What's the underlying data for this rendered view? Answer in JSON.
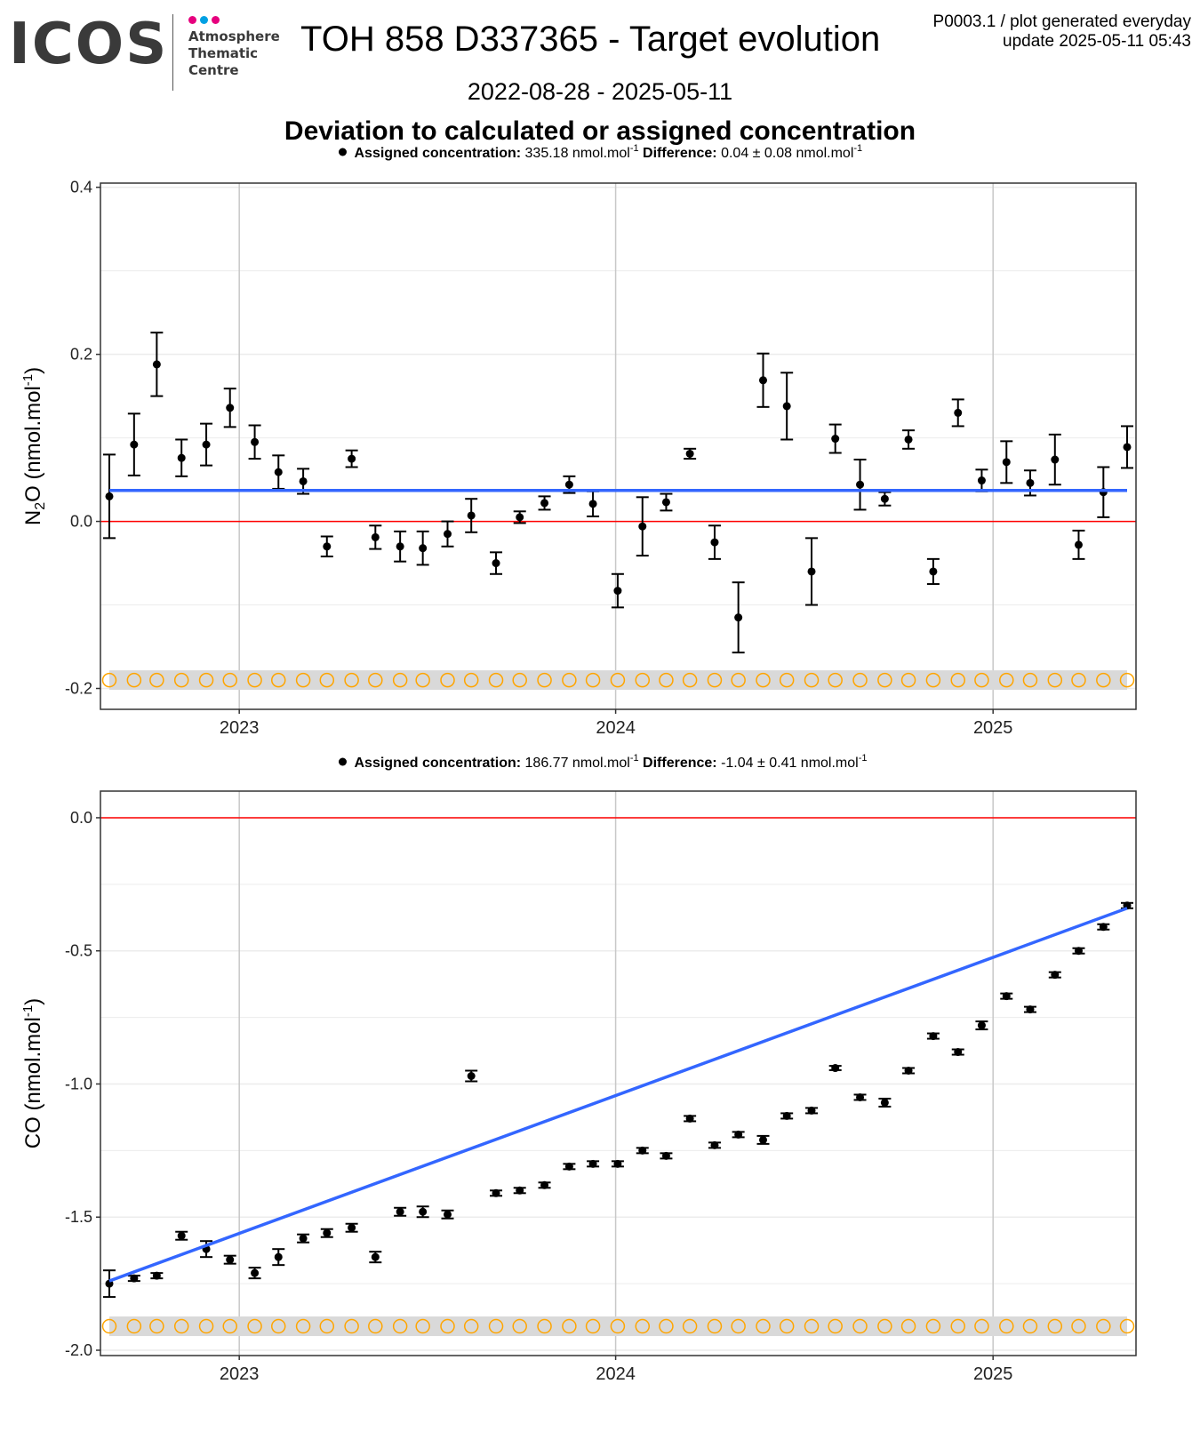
{
  "header": {
    "logo_text": "ICOS",
    "logo_line1": "Atmosphere",
    "logo_line2": "Thematic",
    "logo_line3": "Centre",
    "logo_dot_colors": [
      "#e6007e",
      "#00a0e3",
      "#e6007e"
    ],
    "title": "TOH 858 D337365 - Target evolution",
    "plot_id": "P0003.1 / plot generated everyday",
    "update": "update  2025-05-11 05:43",
    "date_range": "2022-08-28 - 2025-05-11",
    "subtitle": "Deviation to calculated or assigned concentration"
  },
  "colors": {
    "points": "#000000",
    "trend": "#3366ff",
    "zero_line": "#ff0000",
    "flag_ok": "#ffa500",
    "flag_bad": "#ff0000",
    "flag_band": "#d9d9d9",
    "grid_major": "#c8c8c8",
    "grid_minor": "#ececec"
  },
  "chart_data": [
    {
      "type": "scatter",
      "gas": "N2O",
      "ylabel_main": "N",
      "ylabel_sub": "2",
      "ylabel_rest": "O (nmol.mol",
      "ylabel_sup": "-1",
      "ylabel_close": ")",
      "caption": {
        "assigned_label": "Assigned concentration:",
        "assigned_value": "335.18 nmol.mol",
        "unit_sup": "-1",
        "difference_label": "Difference:",
        "difference_value": "0.04 ± 0.08 nmol.mol"
      },
      "xlim": [
        "2022-08-28",
        "2025-05-11"
      ],
      "ylim": [
        -0.225,
        0.405
      ],
      "yticks": [
        0.4,
        0.2,
        0.0,
        -0.2
      ],
      "ytick_labels": [
        "0.4",
        "0.2",
        "0.0",
        "-0.2"
      ],
      "xticks": [
        "2023-01-01",
        "2024-01-01",
        "2025-01-01"
      ],
      "xtick_labels": [
        "2023",
        "2024",
        "2025"
      ],
      "trend": {
        "start": [
          "2022-08-28",
          0.037
        ],
        "end": [
          "2025-05-11",
          0.037
        ]
      },
      "flag_y": -0.19,
      "points": [
        {
          "date": "2022-08-28",
          "y": 0.03,
          "err": 0.05
        },
        {
          "date": "2022-09-21",
          "y": 0.092,
          "err": 0.037
        },
        {
          "date": "2022-10-13",
          "y": 0.188,
          "err": 0.038
        },
        {
          "date": "2022-11-06",
          "y": 0.076,
          "err": 0.022
        },
        {
          "date": "2022-11-30",
          "y": 0.092,
          "err": 0.025
        },
        {
          "date": "2022-12-23",
          "y": 0.136,
          "err": 0.023
        },
        {
          "date": "2023-01-16",
          "y": 0.095,
          "err": 0.02
        },
        {
          "date": "2023-02-08",
          "y": 0.059,
          "err": 0.02
        },
        {
          "date": "2023-03-04",
          "y": 0.048,
          "err": 0.015
        },
        {
          "date": "2023-03-27",
          "y": -0.03,
          "err": 0.012
        },
        {
          "date": "2023-04-20",
          "y": 0.075,
          "err": 0.01
        },
        {
          "date": "2023-05-13",
          "y": -0.019,
          "err": 0.014
        },
        {
          "date": "2023-06-06",
          "y": -0.03,
          "err": 0.018
        },
        {
          "date": "2023-06-28",
          "y": -0.032,
          "err": 0.02
        },
        {
          "date": "2023-07-22",
          "y": -0.015,
          "err": 0.015
        },
        {
          "date": "2023-08-14",
          "y": 0.007,
          "err": 0.02
        },
        {
          "date": "2023-09-07",
          "y": -0.05,
          "err": 0.013
        },
        {
          "date": "2023-09-30",
          "y": 0.005,
          "err": 0.007
        },
        {
          "date": "2023-10-24",
          "y": 0.022,
          "err": 0.008
        },
        {
          "date": "2023-11-17",
          "y": 0.044,
          "err": 0.01
        },
        {
          "date": "2023-12-10",
          "y": 0.021,
          "err": 0.015
        },
        {
          "date": "2024-01-03",
          "y": -0.083,
          "err": 0.02
        },
        {
          "date": "2024-01-27",
          "y": -0.006,
          "err": 0.035
        },
        {
          "date": "2024-02-19",
          "y": 0.023,
          "err": 0.01
        },
        {
          "date": "2024-03-13",
          "y": 0.081,
          "err": 0.006
        },
        {
          "date": "2024-04-06",
          "y": -0.025,
          "err": 0.02
        },
        {
          "date": "2024-04-29",
          "y": -0.115,
          "err": 0.042
        },
        {
          "date": "2024-05-23",
          "y": 0.169,
          "err": 0.032
        },
        {
          "date": "2024-06-15",
          "y": 0.138,
          "err": 0.04
        },
        {
          "date": "2024-07-09",
          "y": -0.06,
          "err": 0.04
        },
        {
          "date": "2024-08-01",
          "y": 0.099,
          "err": 0.017
        },
        {
          "date": "2024-08-25",
          "y": 0.044,
          "err": 0.03
        },
        {
          "date": "2024-09-18",
          "y": 0.027,
          "err": 0.008
        },
        {
          "date": "2024-10-11",
          "y": 0.098,
          "err": 0.011
        },
        {
          "date": "2024-11-04",
          "y": -0.06,
          "err": 0.015
        },
        {
          "date": "2024-11-28",
          "y": 0.13,
          "err": 0.016
        },
        {
          "date": "2024-12-21",
          "y": 0.049,
          "err": 0.013
        },
        {
          "date": "2025-01-14",
          "y": 0.071,
          "err": 0.025
        },
        {
          "date": "2025-02-06",
          "y": 0.046,
          "err": 0.015
        },
        {
          "date": "2025-03-02",
          "y": 0.074,
          "err": 0.03
        },
        {
          "date": "2025-03-25",
          "y": -0.028,
          "err": 0.017
        },
        {
          "date": "2025-04-18",
          "y": 0.035,
          "err": 0.03
        },
        {
          "date": "2025-05-11",
          "y": 0.089,
          "err": 0.025
        }
      ]
    },
    {
      "type": "scatter",
      "gas": "CO",
      "ylabel_main": "CO (nmol.mol",
      "ylabel_sup": "-1",
      "ylabel_close": ")",
      "caption": {
        "assigned_label": "Assigned concentration:",
        "assigned_value": "186.77 nmol.mol",
        "unit_sup": "-1",
        "difference_label": "Difference:",
        "difference_value": "-1.04 ± 0.41 nmol.mol"
      },
      "xlim": [
        "2022-08-28",
        "2025-05-11"
      ],
      "ylim": [
        -2.02,
        0.1
      ],
      "yticks": [
        0.0,
        -0.5,
        -1.0,
        -1.5,
        -2.0
      ],
      "ytick_labels": [
        "0.0",
        "-0.5",
        "-1.0",
        "-1.5",
        "-2.0"
      ],
      "xticks": [
        "2023-01-01",
        "2024-01-01",
        "2025-01-01"
      ],
      "xtick_labels": [
        "2023",
        "2024",
        "2025"
      ],
      "trend": {
        "start": [
          "2022-08-28",
          -1.74
        ],
        "end": [
          "2025-05-11",
          -0.34
        ]
      },
      "flag_y": -1.91,
      "points": [
        {
          "date": "2022-08-28",
          "y": -1.75,
          "err": 0.05
        },
        {
          "date": "2022-09-21",
          "y": -1.73,
          "err": 0.01
        },
        {
          "date": "2022-10-13",
          "y": -1.72,
          "err": 0.01
        },
        {
          "date": "2022-11-06",
          "y": -1.57,
          "err": 0.015
        },
        {
          "date": "2022-11-30",
          "y": -1.62,
          "err": 0.03
        },
        {
          "date": "2022-12-23",
          "y": -1.66,
          "err": 0.015
        },
        {
          "date": "2023-01-16",
          "y": -1.71,
          "err": 0.02
        },
        {
          "date": "2023-02-08",
          "y": -1.65,
          "err": 0.03
        },
        {
          "date": "2023-03-04",
          "y": -1.58,
          "err": 0.015
        },
        {
          "date": "2023-03-27",
          "y": -1.56,
          "err": 0.015
        },
        {
          "date": "2023-04-20",
          "y": -1.54,
          "err": 0.015
        },
        {
          "date": "2023-05-13",
          "y": -1.65,
          "err": 0.02
        },
        {
          "date": "2023-06-06",
          "y": -1.48,
          "err": 0.015
        },
        {
          "date": "2023-06-28",
          "y": -1.48,
          "err": 0.02
        },
        {
          "date": "2023-07-22",
          "y": -1.49,
          "err": 0.015
        },
        {
          "date": "2023-08-14",
          "y": -0.97,
          "err": 0.02
        },
        {
          "date": "2023-09-07",
          "y": -1.41,
          "err": 0.01
        },
        {
          "date": "2023-09-30",
          "y": -1.4,
          "err": 0.01
        },
        {
          "date": "2023-10-24",
          "y": -1.38,
          "err": 0.01
        },
        {
          "date": "2023-11-17",
          "y": -1.31,
          "err": 0.01
        },
        {
          "date": "2023-12-10",
          "y": -1.3,
          "err": 0.01
        },
        {
          "date": "2024-01-03",
          "y": -1.3,
          "err": 0.01
        },
        {
          "date": "2024-01-27",
          "y": -1.25,
          "err": 0.01
        },
        {
          "date": "2024-02-19",
          "y": -1.27,
          "err": 0.01
        },
        {
          "date": "2024-03-13",
          "y": -1.13,
          "err": 0.01
        },
        {
          "date": "2024-04-06",
          "y": -1.23,
          "err": 0.01
        },
        {
          "date": "2024-04-29",
          "y": -1.19,
          "err": 0.01
        },
        {
          "date": "2024-05-23",
          "y": -1.21,
          "err": 0.015
        },
        {
          "date": "2024-06-15",
          "y": -1.12,
          "err": 0.01
        },
        {
          "date": "2024-07-09",
          "y": -1.1,
          "err": 0.01
        },
        {
          "date": "2024-08-01",
          "y": -0.94,
          "err": 0.008
        },
        {
          "date": "2024-08-25",
          "y": -1.05,
          "err": 0.01
        },
        {
          "date": "2024-09-18",
          "y": -1.07,
          "err": 0.015
        },
        {
          "date": "2024-10-11",
          "y": -0.95,
          "err": 0.01
        },
        {
          "date": "2024-11-04",
          "y": -0.82,
          "err": 0.01
        },
        {
          "date": "2024-11-28",
          "y": -0.88,
          "err": 0.01
        },
        {
          "date": "2024-12-21",
          "y": -0.78,
          "err": 0.015
        },
        {
          "date": "2025-01-14",
          "y": -0.67,
          "err": 0.01
        },
        {
          "date": "2025-02-06",
          "y": -0.72,
          "err": 0.01
        },
        {
          "date": "2025-03-02",
          "y": -0.59,
          "err": 0.01
        },
        {
          "date": "2025-03-25",
          "y": -0.5,
          "err": 0.01
        },
        {
          "date": "2025-04-18",
          "y": -0.41,
          "err": 0.01
        },
        {
          "date": "2025-05-11",
          "y": -0.33,
          "err": 0.01
        }
      ]
    }
  ]
}
